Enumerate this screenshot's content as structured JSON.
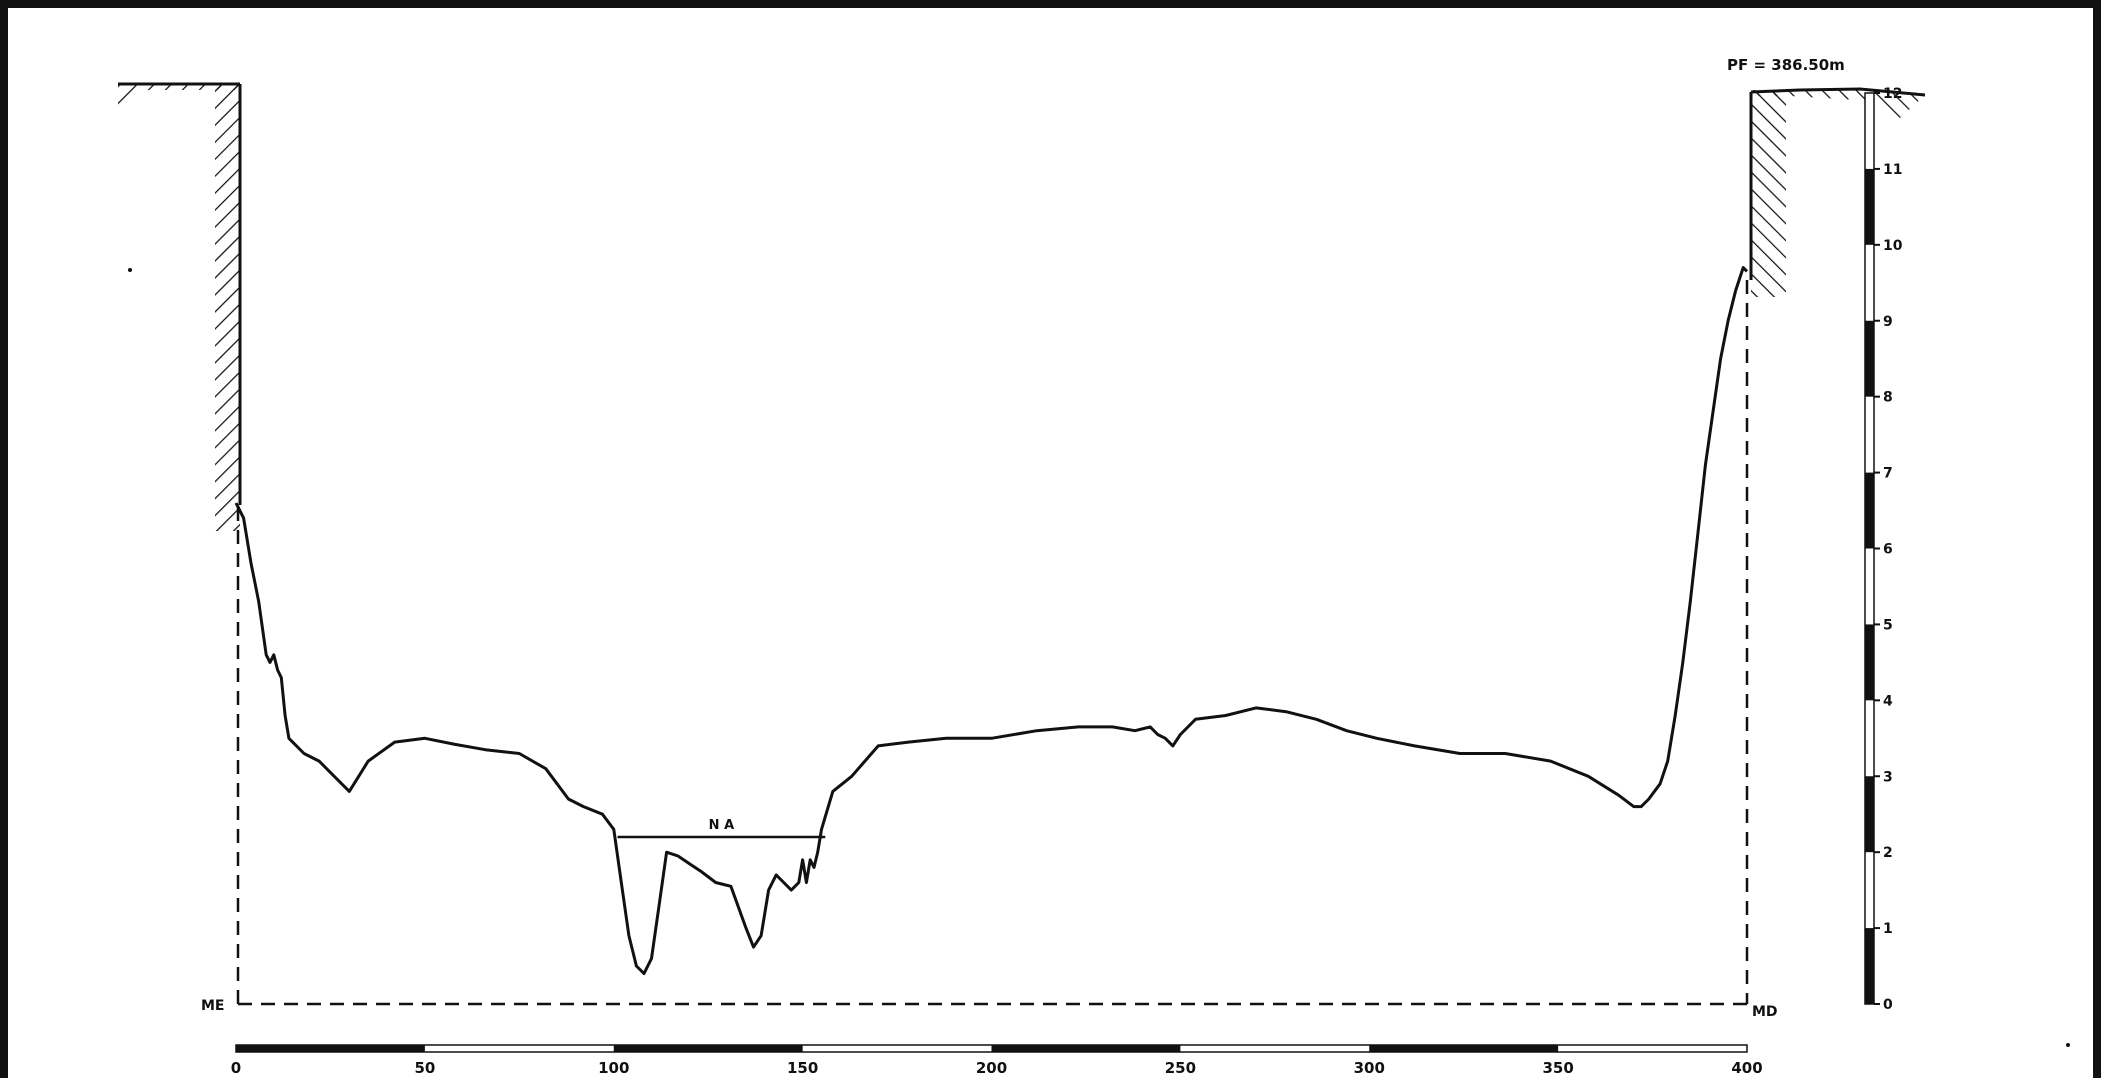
{
  "chart_data": {
    "type": "line",
    "title": "",
    "xlabel": "",
    "ylabel": "",
    "xlim": [
      0,
      400
    ],
    "ylim": [
      0,
      12
    ],
    "x_ticks": [
      "0",
      "50",
      "100",
      "150",
      "200",
      "250",
      "300",
      "350",
      "400"
    ],
    "y_ticks": [
      "0",
      "1",
      "2",
      "3",
      "4",
      "5",
      "6",
      "7",
      "8",
      "9",
      "10",
      "11",
      "12"
    ],
    "grid": false,
    "legend": "none",
    "annotations": {
      "datum_label": "PF = 386.50m",
      "water_level_label": "N A",
      "left_bank_label": "ME",
      "right_bank_label": "MD"
    },
    "water_level": {
      "x": [
        101,
        156
      ],
      "y": 2.2
    },
    "series": [
      {
        "name": "",
        "color": "#111111",
        "x": [
          0,
          2,
          4,
          6,
          8,
          9,
          10,
          11,
          12,
          13,
          14,
          18,
          22,
          26,
          30,
          35,
          42,
          50,
          58,
          66,
          75,
          82,
          88,
          92,
          97,
          100,
          102,
          104,
          106,
          108,
          110,
          112,
          114,
          117,
          120,
          123,
          127,
          131,
          135,
          137,
          139,
          141,
          143,
          145,
          147,
          149,
          150,
          151,
          152,
          153,
          154,
          155,
          158,
          163,
          170,
          178,
          188,
          200,
          212,
          223,
          232,
          238,
          242,
          244,
          246,
          248,
          250,
          254,
          262,
          270,
          278,
          286,
          294,
          302,
          312,
          324,
          336,
          348,
          358,
          366,
          370,
          372,
          374,
          377,
          379,
          381,
          383,
          385,
          387,
          389,
          391,
          393,
          395,
          397,
          399,
          400
        ],
        "y": [
          6.6,
          6.4,
          5.8,
          5.3,
          4.6,
          4.5,
          4.6,
          4.4,
          4.3,
          3.8,
          3.5,
          3.3,
          3.2,
          3.0,
          2.8,
          3.2,
          3.45,
          3.5,
          3.42,
          3.35,
          3.3,
          3.1,
          2.7,
          2.6,
          2.5,
          2.3,
          1.6,
          0.9,
          0.5,
          0.4,
          0.6,
          1.3,
          2.0,
          1.95,
          1.85,
          1.75,
          1.6,
          1.55,
          1.0,
          0.75,
          0.9,
          1.5,
          1.7,
          1.6,
          1.5,
          1.6,
          1.9,
          1.6,
          1.9,
          1.8,
          2.0,
          2.3,
          2.8,
          3.0,
          3.4,
          3.45,
          3.5,
          3.5,
          3.6,
          3.65,
          3.65,
          3.6,
          3.65,
          3.55,
          3.5,
          3.4,
          3.55,
          3.75,
          3.8,
          3.9,
          3.85,
          3.75,
          3.6,
          3.5,
          3.4,
          3.3,
          3.3,
          3.2,
          3.0,
          2.75,
          2.6,
          2.6,
          2.7,
          2.9,
          3.2,
          3.8,
          4.5,
          5.3,
          6.2,
          7.1,
          7.8,
          8.5,
          9.0,
          9.4,
          9.7,
          9.65
        ]
      }
    ]
  }
}
